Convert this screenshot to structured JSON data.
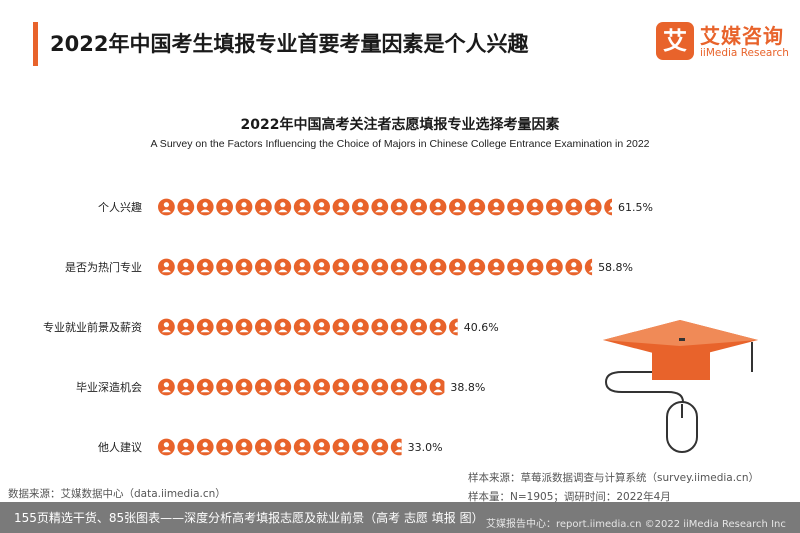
{
  "header": {
    "title": "2022年中国考生填报专业首要考量因素是个人兴趣"
  },
  "logo": {
    "mark": "艾",
    "name_cn": "艾媒咨询",
    "name_en": "iiMedia Research"
  },
  "chart_data": {
    "type": "bar",
    "orientation": "horizontal",
    "title": "2022年中国高考关注者志愿填报专业选择考量因素",
    "subtitle": "A Survey on the Factors Influencing the Choice of Majors in Chinese College Entrance Examination in 2022",
    "categories": [
      "个人兴趣",
      "是否为热门专业",
      "专业就业前景及薪资",
      "毕业深造机会",
      "他人建议"
    ],
    "values": [
      61.5,
      58.8,
      40.6,
      38.8,
      33.0
    ],
    "value_labels": [
      "61.5%",
      "58.8%",
      "40.6%",
      "38.8%",
      "33.0%"
    ],
    "unit": "%",
    "xlim": [
      0,
      61.5
    ],
    "bar_style": "pictogram-person-icons",
    "grid": false,
    "legend": "none",
    "colors": {
      "bar": "#e8632b",
      "label": "#222222"
    }
  },
  "sources": {
    "sample_source": "样本来源：草莓派数据调查与计算系统（survey.iimedia.cn）",
    "sample_size": "样本量：N=1905；调研时间：2022年4月",
    "data_source": "数据来源：艾媒数据中心（data.iimedia.cn）",
    "footer": "艾媒报告中心：report.iimedia.cn  ©2022  iiMedia Research  Inc"
  },
  "overlay": {
    "ad_text": "155页精选干货、85张图表——深度分析高考填报志愿及就业前景（高考 志愿 填报 图）"
  }
}
